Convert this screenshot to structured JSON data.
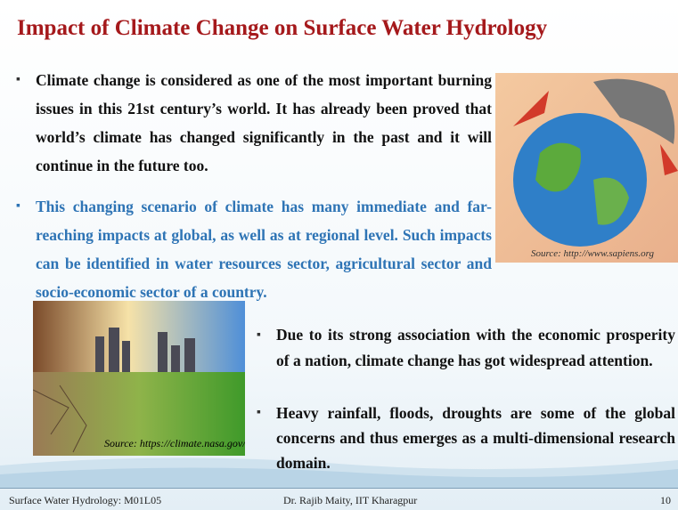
{
  "title": "Impact of Climate Change on Surface Water Hydrology",
  "bullets": [
    "Climate change is considered as one of the most important burning issues in this 21st century’s world. It has already been proved that world’s climate has changed significantly in the past and it will continue in the future too.",
    "This changing scenario of climate has many immediate and far-reaching impacts at global, as well as at regional level. Such impacts can be identified in water resources sector, agricultural sector and socio-economic sector of a country."
  ],
  "lower_bullets": [
    "Due to its strong association with the economic prosperity of a nation, climate change has got widespread attention.",
    "Heavy rainfall, floods, droughts are some of the global concerns and thus emerges as a multi-dimensional research domain."
  ],
  "images": [
    {
      "caption": "Source: http://www.sapiens.org"
    },
    {
      "caption": "Source: https://climate.nasa.gov/"
    }
  ],
  "footer": {
    "left": "Surface Water Hydrology: M01L05",
    "center": "Dr. Rajib Maity, IIT Kharagpur",
    "page": "10"
  }
}
